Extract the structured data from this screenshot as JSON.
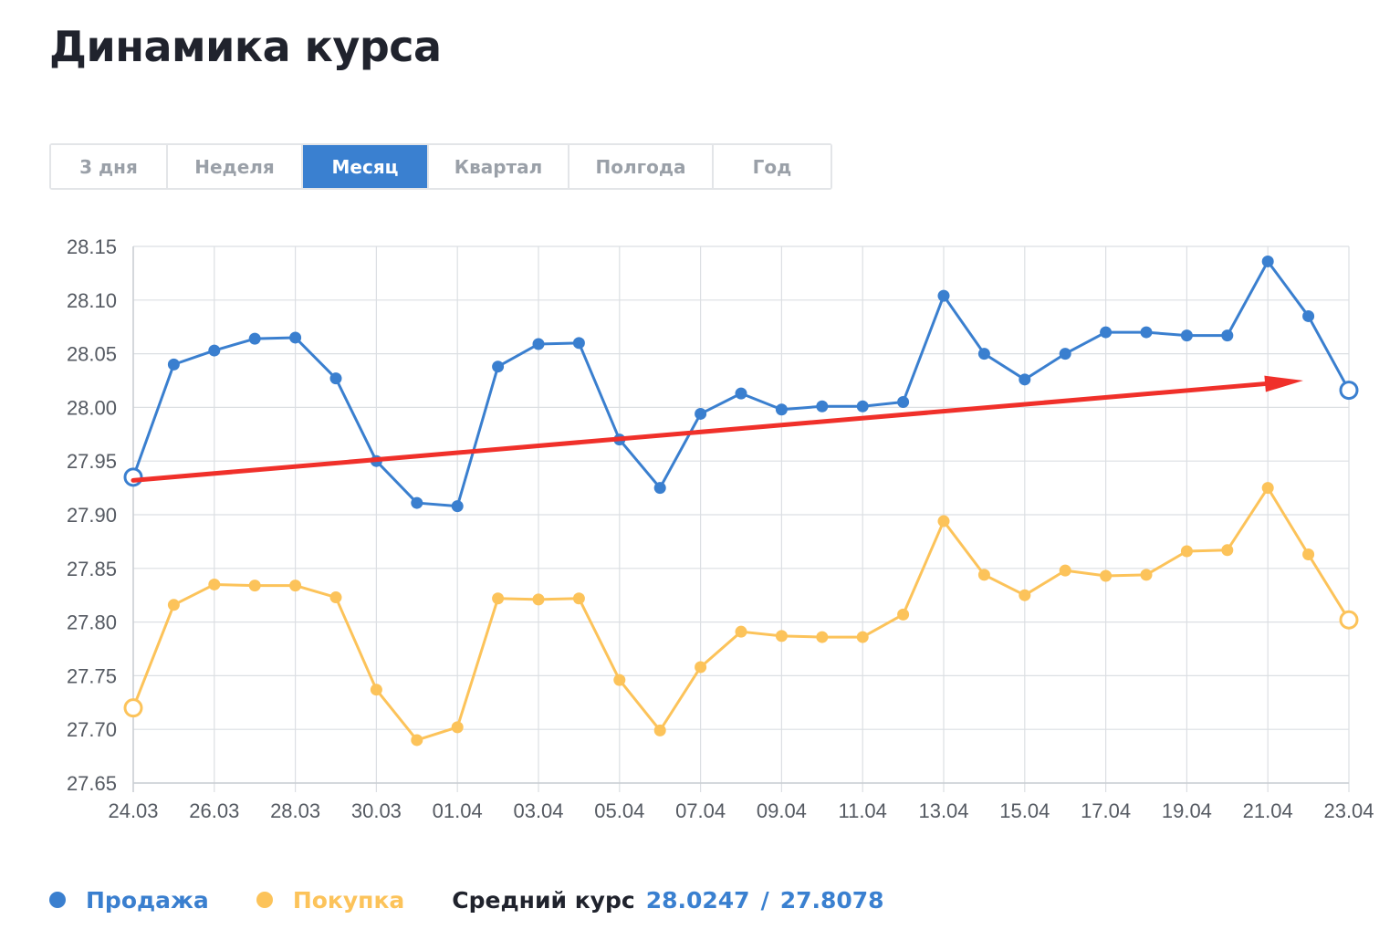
{
  "page": {
    "title": "Динамика курса"
  },
  "tabs": [
    {
      "label": "3 дня",
      "active": false
    },
    {
      "label": "Неделя",
      "active": false
    },
    {
      "label": "Месяц",
      "active": true
    },
    {
      "label": "Квартал",
      "active": false
    },
    {
      "label": "Полгода",
      "active": false
    },
    {
      "label": "Год",
      "active": false
    }
  ],
  "legend": {
    "sell_label": "Продажа",
    "buy_label": "Покупка",
    "avg_label": "Средний курс",
    "avg_sell": "28.0247",
    "avg_separator": "/",
    "avg_buy": "27.8078"
  },
  "colors": {
    "sell": "#3a7fcf",
    "buy": "#fcc35a",
    "trend_arrow": "#f0302a",
    "grid": "#dcdfe3",
    "active_tab": "#3a80d0"
  },
  "chart_data": {
    "type": "line",
    "x": [
      "24.03",
      "25.03",
      "26.03",
      "27.03",
      "28.03",
      "29.03",
      "30.03",
      "31.03",
      "01.04",
      "02.04",
      "03.04",
      "04.04",
      "05.04",
      "06.04",
      "07.04",
      "08.04",
      "09.04",
      "10.04",
      "11.04",
      "12.04",
      "13.04",
      "14.04",
      "15.04",
      "16.04",
      "17.04",
      "18.04",
      "19.04",
      "20.04",
      "21.04",
      "22.04",
      "23.04"
    ],
    "x_tick_labels": [
      "24.03",
      "26.03",
      "28.03",
      "30.03",
      "01.04",
      "03.04",
      "05.04",
      "07.04",
      "09.04",
      "11.04",
      "13.04",
      "15.04",
      "17.04",
      "19.04",
      "21.04",
      "23.04"
    ],
    "y_tick_labels": [
      "28.15",
      "28.10",
      "28.05",
      "28.00",
      "27.95",
      "27.90",
      "27.85",
      "27.80",
      "27.75",
      "27.70",
      "27.65"
    ],
    "ylim": [
      27.65,
      28.15
    ],
    "y_step": 0.05,
    "grid": true,
    "legend_position": "bottom-left",
    "series": [
      {
        "name": "Продажа",
        "color": "#3a7fcf",
        "values": [
          27.935,
          28.04,
          28.053,
          28.064,
          28.065,
          28.027,
          27.95,
          27.911,
          27.908,
          28.038,
          28.059,
          28.06,
          27.97,
          27.925,
          27.994,
          28.013,
          27.998,
          28.001,
          28.001,
          28.005,
          28.104,
          28.05,
          28.026,
          28.05,
          28.07,
          28.07,
          28.067,
          28.067,
          28.136,
          28.085,
          28.016
        ],
        "hollow_points": [
          0,
          30
        ]
      },
      {
        "name": "Покупка",
        "color": "#fcc35a",
        "values": [
          27.72,
          27.816,
          27.835,
          27.834,
          27.834,
          27.823,
          27.737,
          27.69,
          27.702,
          27.822,
          27.821,
          27.822,
          27.746,
          27.699,
          27.758,
          27.791,
          27.787,
          27.786,
          27.786,
          27.807,
          27.894,
          27.844,
          27.825,
          27.848,
          27.843,
          27.844,
          27.866,
          27.867,
          27.925,
          27.863,
          27.802
        ],
        "hollow_points": [
          0,
          30
        ]
      }
    ],
    "annotations": [
      {
        "type": "trend-arrow",
        "color": "#f0302a",
        "from": {
          "x": "24.03",
          "y": 27.932
        },
        "to": {
          "x": "23.04",
          "y": 28.025
        }
      }
    ]
  }
}
